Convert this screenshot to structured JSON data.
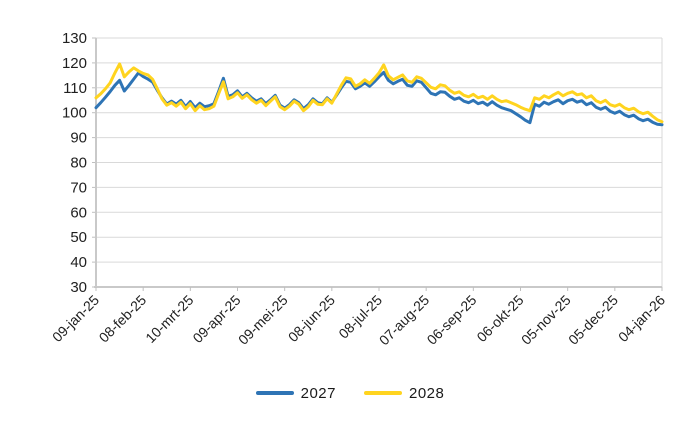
{
  "chart_data": {
    "type": "line",
    "title": "",
    "xlabel": "",
    "ylabel": "",
    "grid": "horizontal",
    "y_axis": {
      "min": 30,
      "max": 130,
      "step": 10,
      "ticks": [
        130,
        120,
        110,
        100,
        90,
        80,
        70,
        60,
        50,
        40,
        30
      ]
    },
    "x_axis": {
      "tick_labels": [
        "09-jan-25",
        "08-feb-25",
        "10-mrt-25",
        "09-apr-25",
        "09-mei-25",
        "08-jun-25",
        "08-jul-25",
        "07-aug-25",
        "06-sep-25",
        "06-okt-25",
        "05-nov-25",
        "05-dec-25",
        "04-jan-26"
      ],
      "days_per_tick": 30,
      "total_days": 360
    },
    "legend": {
      "position": "bottom",
      "entries": [
        "2027",
        "2028"
      ]
    },
    "x_days": [
      0,
      3,
      6,
      9,
      12,
      15,
      18,
      21,
      24,
      27,
      30,
      33,
      36,
      39,
      42,
      45,
      48,
      51,
      54,
      57,
      60,
      63,
      66,
      69,
      72,
      75,
      78,
      81,
      84,
      87,
      90,
      93,
      96,
      99,
      102,
      105,
      108,
      111,
      114,
      117,
      120,
      123,
      126,
      129,
      132,
      135,
      138,
      141,
      144,
      147,
      150,
      153,
      156,
      159,
      162,
      165,
      168,
      171,
      174,
      177,
      180,
      183,
      186,
      189,
      192,
      195,
      198,
      201,
      204,
      207,
      210,
      213,
      216,
      219,
      222,
      225,
      228,
      231,
      234,
      237,
      240,
      243,
      246,
      249,
      252,
      255,
      258,
      261,
      264,
      267,
      270,
      273,
      276,
      279,
      282,
      285,
      288,
      291,
      294,
      297,
      300,
      303,
      306,
      309,
      312,
      315,
      318,
      321,
      324,
      327,
      330,
      333,
      336,
      339,
      342,
      345,
      348,
      351,
      354,
      357,
      360
    ],
    "series": [
      {
        "name": "2027",
        "color": "#2E74B5",
        "values": [
          102,
          104,
          106.2,
          108.5,
          111,
          113,
          108.7,
          111,
          113.5,
          116,
          114.5,
          113.5,
          112.3,
          109,
          106,
          103.5,
          104.6,
          103.4,
          105,
          102.4,
          104.5,
          102,
          103.8,
          102.4,
          102.8,
          103.6,
          108.5,
          113.8,
          106.6,
          107.2,
          108.8,
          106.4,
          107.8,
          106,
          104.6,
          105.6,
          103.6,
          105.2,
          107,
          103,
          101.8,
          103.2,
          105.2,
          104,
          101.6,
          103.2,
          105.6,
          104,
          103.6,
          106,
          104.2,
          107,
          110,
          112.6,
          112.2,
          109.6,
          110.6,
          112,
          110.6,
          112.4,
          114.4,
          116.2,
          113,
          111.6,
          112.6,
          113.4,
          111,
          110.6,
          112.8,
          112.2,
          110,
          107.8,
          107.2,
          108.4,
          108.2,
          106.6,
          105.4,
          106,
          104.6,
          104,
          105,
          103.6,
          104.2,
          103,
          104.4,
          103,
          102,
          101.4,
          100.8,
          99.6,
          98.4,
          97,
          96,
          103.4,
          102.6,
          104.2,
          103.4,
          104.4,
          105.2,
          103.6,
          104.8,
          105.4,
          104.2,
          104.8,
          103.2,
          104,
          102.2,
          101.4,
          102.2,
          100.6,
          99.8,
          100.6,
          99.2,
          98.4,
          99,
          97.6,
          96.8,
          97.4,
          96.2,
          95.4,
          95.2
        ]
      },
      {
        "name": "2028",
        "color": "#FFD41F",
        "values": [
          106,
          107.6,
          109.6,
          112,
          116,
          119.6,
          114.4,
          116.4,
          118,
          116.8,
          115.8,
          115.2,
          113.4,
          109.6,
          105.6,
          103,
          104,
          102.6,
          104.2,
          101.6,
          103.6,
          100.8,
          102.8,
          101.2,
          101.6,
          102.6,
          107.6,
          112.4,
          105.6,
          106.4,
          108,
          105.8,
          107.2,
          105.2,
          103.8,
          105,
          102.8,
          104.6,
          106.4,
          102.4,
          101.2,
          102.6,
          104.6,
          103.4,
          100.8,
          102.4,
          105,
          103.4,
          103.2,
          105.6,
          103.8,
          107.4,
          111,
          114,
          113.6,
          110.6,
          111.6,
          113.2,
          111.8,
          113.8,
          116,
          119.2,
          114.8,
          113.2,
          114.2,
          115.2,
          112.8,
          112.2,
          114.4,
          113.8,
          112,
          110.2,
          109.6,
          111.2,
          110.8,
          109,
          107.8,
          108.4,
          107,
          106.4,
          107.4,
          106,
          106.6,
          105.4,
          106.8,
          105.4,
          104.4,
          104.8,
          104,
          103.2,
          102.2,
          101.4,
          100.8,
          106,
          105.4,
          106.8,
          106,
          107.2,
          108.2,
          106.8,
          107.8,
          108.4,
          107.2,
          107.6,
          106,
          106.8,
          104.8,
          104,
          105,
          103.2,
          102.6,
          103.4,
          102,
          101.2,
          101.8,
          100.4,
          99.6,
          100.2,
          98.6,
          97.2,
          96.4
        ]
      }
    ],
    "colors": {
      "gridline": "#D9D9D9",
      "axis": "#C9C9C9",
      "tick": "#BFBFBF",
      "label": "#1f1f1f"
    }
  }
}
